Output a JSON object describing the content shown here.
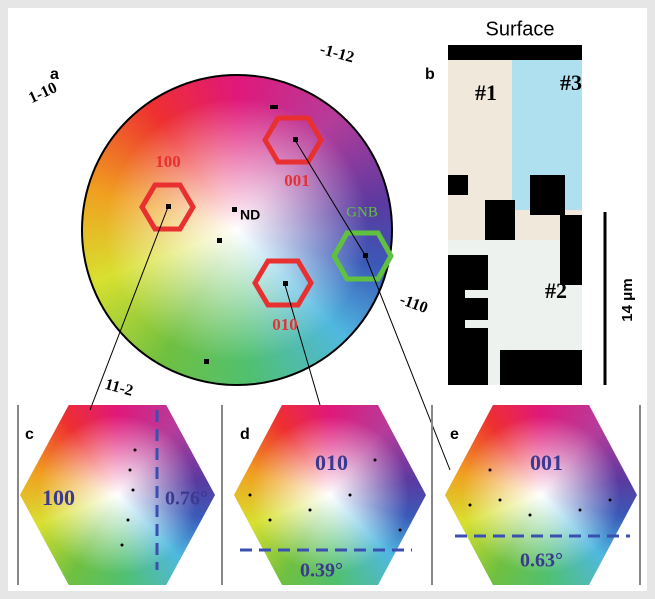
{
  "panel_a": {
    "label": "a",
    "directions": [
      "1-10",
      "-1-12",
      "-110",
      "11-2"
    ],
    "poles": [
      "100",
      "001",
      "010"
    ],
    "gnb": "GNB",
    "nd": "ND"
  },
  "panel_b": {
    "label": "b",
    "title": "Surface",
    "regions": [
      "#1",
      "#3",
      "#2"
    ],
    "scale": "14 μm"
  },
  "insets": [
    {
      "label": "c",
      "pole": "100",
      "angle": "0.76°"
    },
    {
      "label": "d",
      "pole": "010",
      "angle": "0.39°"
    },
    {
      "label": "e",
      "pole": "001",
      "angle": "0.63°"
    }
  ]
}
